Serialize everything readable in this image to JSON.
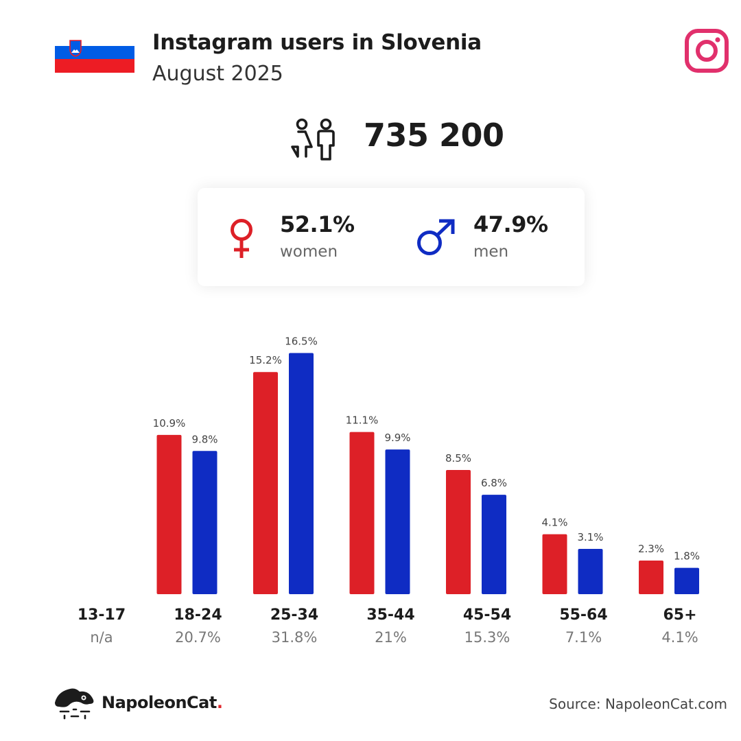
{
  "header": {
    "title": "Instagram users in Slovenia",
    "subtitle": "August 2025"
  },
  "total_users": "735 200",
  "gender": {
    "women": {
      "pct": "52.1%",
      "label": "women"
    },
    "men": {
      "pct": "47.9%",
      "label": "men"
    }
  },
  "colors": {
    "women": "#dd2027",
    "men": "#0f2cc3",
    "instagram": "#e1306c",
    "flag_white": "#ffffff",
    "flag_blue": "#005ce5",
    "flag_red": "#ed1c24"
  },
  "chart_data": {
    "type": "bar",
    "categories": [
      "13-17",
      "18-24",
      "25-34",
      "35-44",
      "45-54",
      "55-64",
      "65+"
    ],
    "category_totals": [
      "n/a",
      "20.7%",
      "31.8%",
      "21%",
      "15.3%",
      "7.1%",
      "4.1%"
    ],
    "series": [
      {
        "name": "women",
        "values": [
          null,
          10.9,
          15.2,
          11.1,
          8.5,
          4.1,
          2.3
        ],
        "labels": [
          "",
          "10.9%",
          "15.2%",
          "11.1%",
          "8.5%",
          "4.1%",
          "2.3%"
        ]
      },
      {
        "name": "men",
        "values": [
          null,
          9.8,
          16.5,
          9.9,
          6.8,
          3.1,
          1.8
        ],
        "labels": [
          "",
          "9.8%",
          "16.5%",
          "9.9%",
          "6.8%",
          "3.1%",
          "1.8%"
        ]
      }
    ],
    "title": "",
    "xlabel": "",
    "ylabel": "",
    "grid": false,
    "legend": "none"
  },
  "footer": {
    "brand": "NapoleonCat",
    "brand_dot": ".",
    "source": "Source: NapoleonCat.com"
  }
}
